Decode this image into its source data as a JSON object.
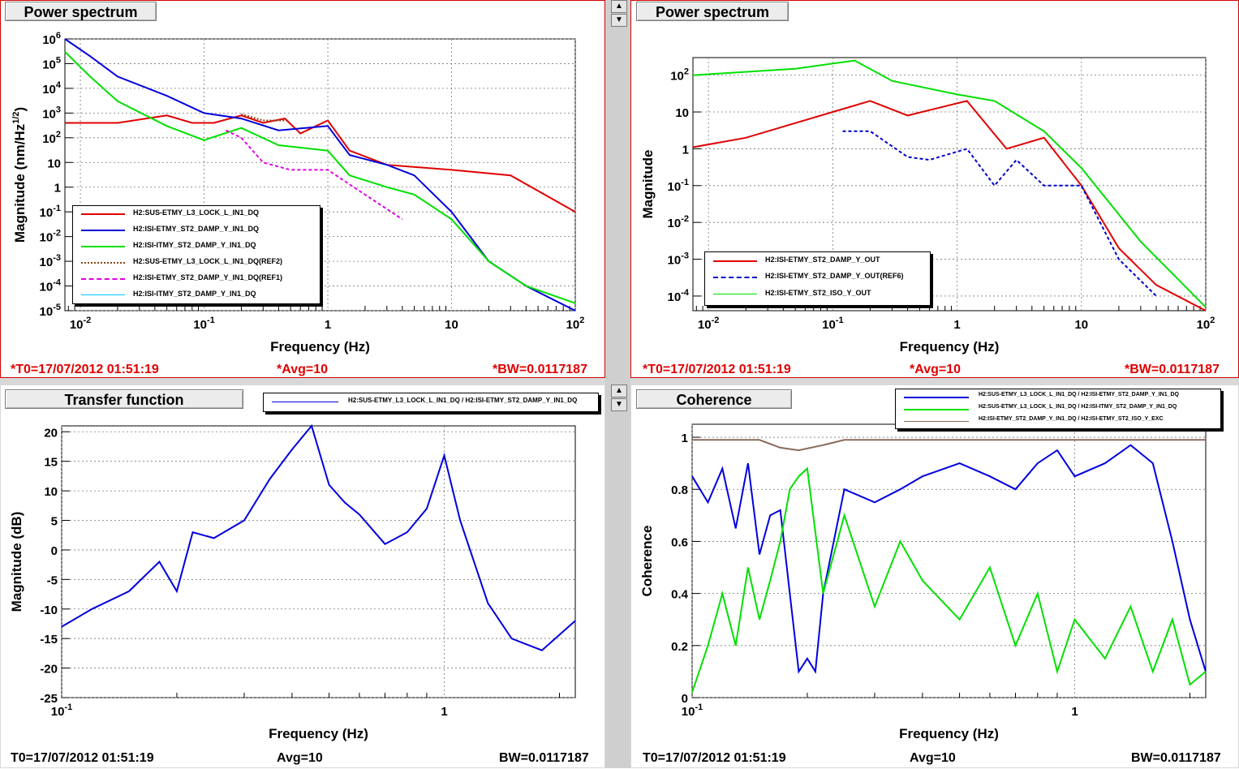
{
  "colors": {
    "red": "#e00000",
    "blue": "#0000dd",
    "green": "#00e000",
    "brown": "#8b4513",
    "magenta": "#e000e0",
    "cyan": "#00c8ff",
    "dkblue": "#0000cc",
    "gray": "#8a6a5a"
  },
  "panels": [
    {
      "title": "Power spectrum",
      "footer": {
        "t0": "*T0=17/07/2012 01:51:19",
        "avg": "*Avg=10",
        "bw": "*BW=0.0117187"
      }
    },
    {
      "title": "Power spectrum",
      "footer": {
        "t0": "*T0=17/07/2012 01:51:19",
        "avg": "*Avg=10",
        "bw": "*BW=0.0117187"
      }
    },
    {
      "title": "Transfer function",
      "footer": {
        "t0": "T0=17/07/2012 01:51:19",
        "avg": "Avg=10",
        "bw": "BW=0.0117187"
      }
    },
    {
      "title": "Coherence",
      "footer": {
        "t0": "T0=17/07/2012 01:51:19",
        "avg": "Avg=10",
        "bw": "BW=0.0117187"
      }
    }
  ],
  "chart_data": [
    {
      "type": "line",
      "title": "Power spectrum",
      "xlabel": "Frequency (Hz)",
      "ylabel": "Magnitude (nm/Hz^1/2)",
      "xscale": "log",
      "yscale": "log",
      "xlim": [
        0.0075,
        100
      ],
      "ylim": [
        1e-05,
        1000000
      ],
      "xticks": [
        "10^-2",
        "10^-1",
        "1",
        "10",
        "10^2"
      ],
      "yticks": [
        "10^-5",
        "10^-4",
        "10^-3",
        "10^-2",
        "10^-1",
        "1",
        "10",
        "10^2",
        "10^3",
        "10^4",
        "10^5",
        "10^6"
      ],
      "grid": true,
      "legend_position": "bottom-left",
      "series": [
        {
          "name": "H2:SUS-ETMY_L3_LOCK_L_IN1_DQ",
          "color": "red",
          "style": "solid",
          "x": [
            0.0075,
            0.02,
            0.05,
            0.08,
            0.12,
            0.2,
            0.3,
            0.45,
            0.6,
            1,
            1.5,
            3,
            10,
            30,
            100
          ],
          "y": [
            400,
            400,
            800,
            400,
            400,
            800,
            400,
            600,
            150,
            500,
            30,
            8,
            5,
            3,
            0.1
          ]
        },
        {
          "name": "H2:ISI-ETMY_ST2_DAMP_Y_IN1_DQ",
          "color": "blue",
          "style": "solid",
          "x": [
            0.0075,
            0.012,
            0.02,
            0.05,
            0.1,
            0.2,
            0.4,
            1,
            1.5,
            3,
            5,
            10,
            20,
            40,
            100
          ],
          "y": [
            1000000,
            200000,
            30000,
            5000,
            1000,
            600,
            200,
            300,
            20,
            8,
            3,
            0.1,
            0.001,
            0.0001,
            1e-05
          ]
        },
        {
          "name": "H2:ISI-ITMY_ST2_DAMP_Y_IN1_DQ",
          "color": "green",
          "style": "solid",
          "x": [
            0.0075,
            0.012,
            0.02,
            0.05,
            0.1,
            0.2,
            0.4,
            1,
            1.5,
            3,
            5,
            10,
            20,
            40,
            100
          ],
          "y": [
            300000,
            30000,
            3000,
            300,
            80,
            250,
            50,
            30,
            3,
            1,
            0.5,
            0.05,
            0.001,
            0.0001,
            2e-05
          ]
        },
        {
          "name": "H2:SUS-ETMY_L3_LOCK_L_IN1_DQ(REF2)",
          "color": "brown",
          "style": "dotted",
          "x": [
            0.2,
            0.3,
            0.45
          ],
          "y": [
            900,
            500,
            500
          ]
        },
        {
          "name": "H2:ISI-ETMY_ST2_DAMP_Y_IN1_DQ(REF1)",
          "color": "magenta",
          "style": "dashed",
          "x": [
            0.15,
            0.2,
            0.3,
            0.5,
            1,
            2,
            4
          ],
          "y": [
            200,
            100,
            10,
            5,
            5,
            0.5,
            0.05
          ]
        },
        {
          "name": "H2:ISI-ITMY_ST2_DAMP_Y_IN1_DQ",
          "color": "cyan",
          "style": "solid",
          "x": [],
          "y": []
        }
      ]
    },
    {
      "type": "line",
      "title": "Power spectrum",
      "xlabel": "Frequency (Hz)",
      "ylabel": "Magnitude",
      "xscale": "log",
      "yscale": "log",
      "xlim": [
        0.0075,
        100
      ],
      "ylim": [
        4e-05,
        300
      ],
      "xticks": [
        "10^-2",
        "10^-1",
        "1",
        "10",
        "10^2"
      ],
      "yticks": [
        "10^-4",
        "10^-3",
        "10^-2",
        "10^-1",
        "1",
        "10",
        "10^2"
      ],
      "grid": true,
      "legend_position": "bottom-left",
      "series": [
        {
          "name": "H2:ISI-ETMY_ST2_DAMP_Y_OUT",
          "color": "red",
          "style": "solid",
          "x": [
            0.0075,
            0.02,
            0.05,
            0.1,
            0.2,
            0.4,
            1.2,
            2.5,
            5,
            10,
            20,
            40,
            100
          ],
          "y": [
            1.1,
            2,
            5,
            10,
            20,
            8,
            20,
            1,
            2,
            0.1,
            0.002,
            0.0002,
            4e-05
          ]
        },
        {
          "name": "H2:ISI-ETMY_ST2_DAMP_Y_OUT(REF6)",
          "color": "dkblue",
          "style": "dashed",
          "x": [
            0.12,
            0.2,
            0.4,
            0.6,
            1.2,
            2,
            3,
            5,
            10,
            20,
            40
          ],
          "y": [
            3,
            3,
            0.6,
            0.5,
            1,
            0.1,
            0.5,
            0.1,
            0.1,
            0.001,
            0.0001
          ]
        },
        {
          "name": "H2:ISI-ETMY_ST2_ISO_Y_OUT",
          "color": "green",
          "style": "solid",
          "x": [
            0.0075,
            0.05,
            0.15,
            0.3,
            1,
            2,
            5,
            10,
            30,
            100
          ],
          "y": [
            100,
            150,
            250,
            70,
            30,
            20,
            3,
            0.3,
            0.003,
            5e-05
          ]
        }
      ]
    },
    {
      "type": "line",
      "title": "Transfer function",
      "xlabel": "Frequency (Hz)",
      "ylabel": "Magnitude (dB)",
      "xscale": "log",
      "xlim": [
        0.1,
        2.2
      ],
      "ylim": [
        -25,
        21
      ],
      "xticks": [
        "10^-1",
        "1"
      ],
      "yticks": [
        "-25",
        "-20",
        "-15",
        "-10",
        "-5",
        "0",
        "5",
        "10",
        "15",
        "20"
      ],
      "grid": true,
      "legend_position": "top",
      "series": [
        {
          "name": "H2:SUS-ETMY_L3_LOCK_L_IN1_DQ / H2:ISI-ETMY_ST2_DAMP_Y_IN1_DQ",
          "color": "blue",
          "style": "solid",
          "x": [
            0.1,
            0.12,
            0.15,
            0.18,
            0.2,
            0.22,
            0.25,
            0.3,
            0.35,
            0.4,
            0.45,
            0.5,
            0.55,
            0.6,
            0.7,
            0.8,
            0.9,
            1,
            1.1,
            1.3,
            1.5,
            1.8,
            2.2
          ],
          "y": [
            -13,
            -10,
            -7,
            -2,
            -7,
            3,
            2,
            5,
            12,
            17,
            21,
            11,
            8,
            6,
            1,
            3,
            7,
            16,
            5,
            -9,
            -15,
            -17,
            -12
          ]
        }
      ]
    },
    {
      "type": "line",
      "title": "Coherence",
      "xlabel": "Frequency (Hz)",
      "ylabel": "Coherence",
      "xscale": "log",
      "xlim": [
        0.1,
        2.2
      ],
      "ylim": [
        0,
        1.05
      ],
      "xticks": [
        "10^-1",
        "1"
      ],
      "yticks": [
        "0",
        "0.2",
        "0.4",
        "0.6",
        "0.8",
        "1"
      ],
      "grid": true,
      "legend_position": "top",
      "series": [
        {
          "name": "H2:SUS-ETMY_L3_LOCK_L_IN1_DQ / H2:ISI-ETMY_ST2_DAMP_Y_IN1_DQ",
          "color": "blue",
          "style": "solid",
          "x": [
            0.1,
            0.11,
            0.12,
            0.13,
            0.14,
            0.15,
            0.16,
            0.17,
            0.18,
            0.19,
            0.2,
            0.21,
            0.22,
            0.25,
            0.3,
            0.35,
            0.4,
            0.5,
            0.6,
            0.7,
            0.8,
            0.9,
            1,
            1.2,
            1.4,
            1.6,
            1.8,
            2,
            2.2
          ],
          "y": [
            0.85,
            0.75,
            0.88,
            0.65,
            0.9,
            0.55,
            0.7,
            0.72,
            0.4,
            0.1,
            0.15,
            0.1,
            0.4,
            0.8,
            0.75,
            0.8,
            0.85,
            0.9,
            0.85,
            0.8,
            0.9,
            0.95,
            0.85,
            0.9,
            0.97,
            0.9,
            0.6,
            0.3,
            0.1
          ]
        },
        {
          "name": "H2:SUS-ETMY_L3_LOCK_L_IN1_DQ / H2:ISI-ITMY_ST2_DAMP_Y_IN1_DQ",
          "color": "green",
          "style": "solid",
          "x": [
            0.1,
            0.11,
            0.12,
            0.13,
            0.14,
            0.15,
            0.16,
            0.17,
            0.18,
            0.19,
            0.2,
            0.22,
            0.25,
            0.3,
            0.35,
            0.4,
            0.5,
            0.6,
            0.7,
            0.8,
            0.9,
            1,
            1.2,
            1.4,
            1.6,
            1.8,
            2,
            2.2
          ],
          "y": [
            0.02,
            0.2,
            0.4,
            0.2,
            0.5,
            0.3,
            0.45,
            0.6,
            0.8,
            0.85,
            0.88,
            0.4,
            0.7,
            0.35,
            0.6,
            0.45,
            0.3,
            0.5,
            0.2,
            0.4,
            0.1,
            0.3,
            0.15,
            0.35,
            0.1,
            0.3,
            0.05,
            0.1
          ]
        },
        {
          "name": "H2:ISI-ETMY_ST2_DAMP_Y_IN1_DQ / H2:ISI-ETMY_ST2_ISO_Y_EXC",
          "color": "gray",
          "style": "solid",
          "x": [
            0.1,
            0.15,
            0.17,
            0.19,
            0.22,
            0.25,
            0.3,
            0.5,
            1,
            1.5,
            2.2
          ],
          "y": [
            0.99,
            0.99,
            0.96,
            0.95,
            0.97,
            0.99,
            0.99,
            0.99,
            0.99,
            0.99,
            0.99
          ]
        }
      ]
    }
  ]
}
